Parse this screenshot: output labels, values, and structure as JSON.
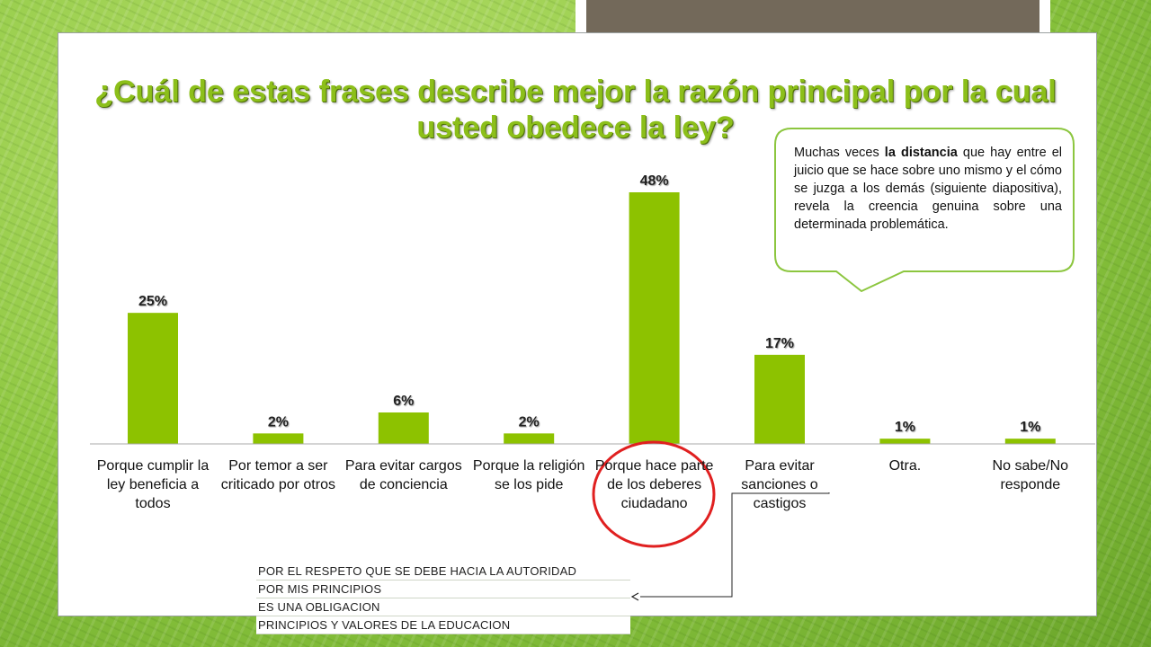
{
  "slide": {
    "title_line1": "¿Cuál de estas frases describe mejor la razón principal por la cual",
    "title_line2": "usted obedece la ley?"
  },
  "callout": {
    "text_before": "Muchas veces ",
    "text_bold": "la distancia",
    "text_after": " que hay entre el juicio que se hace sobre uno mismo y el cómo se juzga a los demás (siguiente diapositiva), revela la creencia genuina sobre una determinada problemática."
  },
  "other_reasons": [
    "POR EL RESPETO QUE SE DEBE HACIA LA AUTORIDAD",
    "POR MIS PRINCIPIOS",
    "ES UNA OBLIGACION",
    "PRINCIPIOS Y VALORES DE LA EDUCACION"
  ],
  "colors": {
    "bar": "#8dc200",
    "title": "#8cbf1a",
    "callout_border": "#8cc63f",
    "highlight_circle": "#e02020"
  },
  "chart_data": {
    "type": "bar",
    "categories": [
      "Porque cumplir la ley beneficia a todos",
      "Por temor a ser criticado por otros",
      "Para evitar cargos de conciencia",
      "Porque la religión se los pide",
      "Porque hace parte de los deberes ciudadano",
      "Para evitar sanciones o castigos",
      "Otra.",
      "No sabe/No responde"
    ],
    "values": [
      25,
      2,
      6,
      2,
      48,
      17,
      1,
      1
    ],
    "value_labels": [
      "25%",
      "2%",
      "6%",
      "2%",
      "48%",
      "17%",
      "1%",
      "1%"
    ],
    "ylim": [
      0,
      50
    ],
    "highlighted_category": "Porque hace parte de los deberes ciudadano"
  }
}
